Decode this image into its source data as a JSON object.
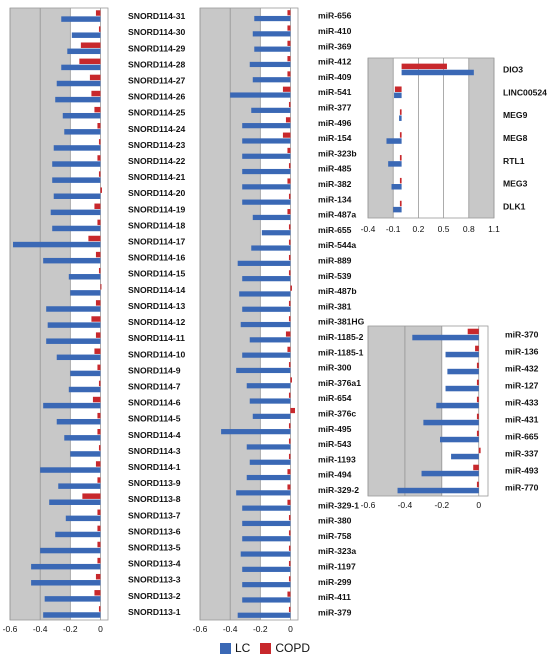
{
  "legend": {
    "lc_label": "LC",
    "copd_label": "COPD"
  },
  "colors": {
    "lc": "#3a68b5",
    "copd": "#c8282c",
    "shade": "#c8c8c8",
    "grid": "#8a8a8a",
    "gridLight": "#e0e0e0"
  },
  "chart_data": [
    {
      "type": "bar",
      "orientation": "horizontal",
      "series": [
        {
          "name": "LC"
        },
        {
          "name": "COPD"
        }
      ],
      "xlim": [
        -0.6,
        0.05
      ],
      "xticks": [
        "-0.6",
        "-0.4",
        "-0.2",
        "0"
      ],
      "categories": [
        "SNORD114-31",
        "SNORD114-30",
        "SNORD114-29",
        "SNORD114-28",
        "SNORD114-27",
        "SNORD114-26",
        "SNORD114-25",
        "SNORD114-24",
        "SNORD114-23",
        "SNORD114-22",
        "SNORD114-21",
        "SNORD114-20",
        "SNORD114-19",
        "SNORD114-18",
        "SNORD114-17",
        "SNORD114-16",
        "SNORD114-15",
        "SNORD114-14",
        "SNORD114-13",
        "SNORD114-12",
        "SNORD114-11",
        "SNORD114-10",
        "SNORD114-9",
        "SNORD114-7",
        "SNORD114-6",
        "SNORD114-5",
        "SNORD114-4",
        "SNORD114-3",
        "SNORD114-1",
        "SNORD113-9",
        "SNORD113-8",
        "SNORD113-7",
        "SNORD113-6",
        "SNORD113-5",
        "SNORD113-4",
        "SNORD113-3",
        "SNORD113-2",
        "SNORD113-1"
      ],
      "lc": [
        -0.26,
        -0.19,
        -0.22,
        -0.26,
        -0.29,
        -0.3,
        -0.25,
        -0.24,
        -0.31,
        -0.32,
        -0.32,
        -0.31,
        -0.33,
        -0.32,
        -0.58,
        -0.38,
        -0.21,
        -0.2,
        -0.36,
        -0.35,
        -0.36,
        -0.29,
        -0.2,
        -0.21,
        -0.38,
        -0.29,
        -0.24,
        -0.2,
        -0.4,
        -0.28,
        -0.34,
        -0.23,
        -0.3,
        -0.4,
        -0.46,
        -0.46,
        -0.37,
        -0.38
      ],
      "copd": [
        -0.03,
        -0.01,
        -0.13,
        -0.14,
        -0.07,
        -0.06,
        -0.04,
        -0.02,
        -0.01,
        -0.02,
        -0.01,
        0.01,
        -0.04,
        -0.02,
        -0.08,
        -0.03,
        -0.01,
        0.0,
        -0.03,
        -0.06,
        -0.03,
        -0.04,
        -0.02,
        -0.01,
        -0.05,
        -0.02,
        -0.02,
        -0.01,
        -0.03,
        -0.02,
        -0.12,
        -0.02,
        -0.02,
        -0.02,
        -0.02,
        -0.03,
        -0.04,
        -0.01
      ]
    },
    {
      "type": "bar",
      "orientation": "horizontal",
      "series": [
        {
          "name": "LC"
        },
        {
          "name": "COPD"
        }
      ],
      "xlim": [
        -0.6,
        0.05
      ],
      "xticks": [
        "-0.6",
        "-0.4",
        "-0.2",
        "0"
      ],
      "categories": [
        "miR-656",
        "miR-410",
        "miR-369",
        "miR-412",
        "miR-409",
        "miR-541",
        "miR-377",
        "miR-496",
        "miR-154",
        "miR-323b",
        "miR-485",
        "miR-382",
        "miR-134",
        "miR-487a",
        "miR-655",
        "miR-544a",
        "miR-889",
        "miR-539",
        "miR-487b",
        "miR-381",
        "miR-381HG",
        "miR-1185-2",
        "miR-1185-1",
        "miR-300",
        "miR-376a1",
        "miR-654",
        "miR-376c",
        "miR-495",
        "miR-543",
        "miR-1193",
        "miR-494",
        "miR-329-2",
        "miR-329-1",
        "miR-380",
        "miR-758",
        "miR-323a",
        "miR-1197",
        "miR-299",
        "miR-411",
        "miR-379"
      ],
      "lc": [
        -0.24,
        -0.25,
        -0.24,
        -0.27,
        -0.25,
        -0.4,
        -0.26,
        -0.32,
        -0.32,
        -0.32,
        -0.32,
        -0.32,
        -0.32,
        -0.25,
        -0.19,
        -0.26,
        -0.35,
        -0.32,
        -0.34,
        -0.32,
        -0.33,
        -0.27,
        -0.32,
        -0.36,
        -0.29,
        -0.27,
        -0.25,
        -0.46,
        -0.29,
        -0.27,
        -0.29,
        -0.36,
        -0.32,
        -0.32,
        -0.32,
        -0.33,
        -0.32,
        -0.32,
        -0.32,
        -0.35
      ],
      "copd": [
        -0.02,
        -0.02,
        -0.02,
        -0.02,
        -0.02,
        -0.05,
        -0.01,
        -0.03,
        -0.05,
        -0.02,
        -0.01,
        -0.02,
        -0.01,
        -0.02,
        -0.01,
        -0.01,
        -0.01,
        -0.01,
        0.01,
        -0.01,
        -0.01,
        -0.03,
        -0.02,
        -0.01,
        0.01,
        -0.01,
        0.03,
        -0.01,
        -0.01,
        -0.01,
        -0.02,
        -0.02,
        -0.02,
        -0.01,
        -0.01,
        -0.01,
        -0.01,
        -0.01,
        -0.02,
        -0.01
      ]
    },
    {
      "type": "bar",
      "orientation": "horizontal",
      "series": [
        {
          "name": "LC"
        },
        {
          "name": "COPD"
        }
      ],
      "xlim": [
        -0.4,
        1.1
      ],
      "xticks": [
        "-0.4",
        "-0.1",
        "0.2",
        "0.5",
        "0.8",
        "1.1"
      ],
      "categories": [
        "DIO3",
        "LINC00524",
        "MEG9",
        "MEG8",
        "RTL1",
        "MEG3",
        "DLK1"
      ],
      "lc": [
        0.86,
        -0.09,
        -0.03,
        -0.18,
        -0.16,
        -0.12,
        -0.1
      ],
      "copd": [
        0.54,
        -0.08,
        -0.02,
        -0.02,
        -0.02,
        -0.02,
        -0.02
      ]
    },
    {
      "type": "bar",
      "orientation": "horizontal",
      "series": [
        {
          "name": "LC"
        },
        {
          "name": "COPD"
        }
      ],
      "xlim": [
        -0.6,
        0.05
      ],
      "xticks": [
        "-0.6",
        "-0.4",
        "-0.2",
        "0"
      ],
      "categories": [
        "miR-370",
        "miR-136",
        "miR-432",
        "miR-127",
        "miR-433",
        "miR-431",
        "miR-665",
        "miR-337",
        "miR-493",
        "miR-770"
      ],
      "lc": [
        -0.36,
        -0.18,
        -0.17,
        -0.18,
        -0.23,
        -0.3,
        -0.21,
        -0.15,
        -0.31,
        -0.44
      ],
      "copd": [
        -0.06,
        -0.02,
        -0.01,
        -0.01,
        -0.01,
        -0.01,
        -0.01,
        0.01,
        -0.03,
        -0.01
      ]
    }
  ]
}
